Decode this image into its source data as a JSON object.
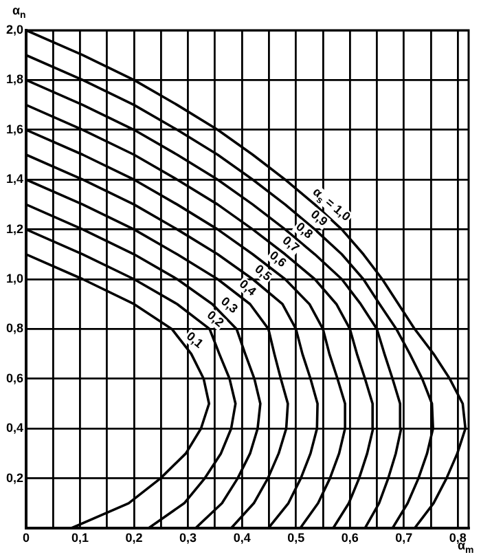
{
  "chart_data": {
    "type": "line",
    "xlabel": "α$_{m}$",
    "ylabel": "α$_{n}$",
    "xlim": [
      0,
      0.82
    ],
    "xticks": [
      {
        "value": 0,
        "label": "0"
      },
      {
        "value": 0.05,
        "label": null
      },
      {
        "value": 0.1,
        "label": "0,1"
      },
      {
        "value": 0.15,
        "label": null
      },
      {
        "value": 0.2,
        "label": "0,2"
      },
      {
        "value": 0.25,
        "label": null
      },
      {
        "value": 0.3,
        "label": "0,3"
      },
      {
        "value": 0.35,
        "label": null
      },
      {
        "value": 0.4,
        "label": "0,4"
      },
      {
        "value": 0.45,
        "label": null
      },
      {
        "value": 0.5,
        "label": "0,5"
      },
      {
        "value": 0.55,
        "label": null
      },
      {
        "value": 0.6,
        "label": "0,6"
      },
      {
        "value": 0.65,
        "label": null
      },
      {
        "value": 0.7,
        "label": "0,7"
      },
      {
        "value": 0.75,
        "label": null
      },
      {
        "value": 0.8,
        "label": "0,8"
      }
    ],
    "ylim": [
      0,
      2
    ],
    "yticks": [
      {
        "value": 0,
        "label": null
      },
      {
        "value": 0.2,
        "label": "0,2"
      },
      {
        "value": 0.4,
        "label": "0,4"
      },
      {
        "value": 0.6,
        "label": "0,6"
      },
      {
        "value": 0.8,
        "label": "0,8"
      },
      {
        "value": 1,
        "label": "1,0"
      },
      {
        "value": 1.2,
        "label": "1,2"
      },
      {
        "value": 1.4,
        "label": "1,4"
      },
      {
        "value": 1.6,
        "label": "1,6"
      },
      {
        "value": 1.8,
        "label": "1,8"
      },
      {
        "value": 2,
        "label": "2,0"
      }
    ],
    "grid": true,
    "legend": false,
    "marker": "none",
    "line_style": "solid",
    "series": [
      {
        "name": "0,1",
        "color": "#000000",
        "x": [
          0.084,
          0.19,
          0.249,
          0.296,
          0.324,
          0.339,
          0.329,
          0.306,
          0.27,
          0.2,
          0.105,
          0
        ],
        "values": [
          0,
          0.1,
          0.2,
          0.3,
          0.4,
          0.5,
          0.6,
          0.7,
          0.8,
          0.9,
          1.0,
          1.1
        ]
      },
      {
        "name": "0,2",
        "color": "#000000",
        "x": [
          0.227,
          0.293,
          0.331,
          0.361,
          0.38,
          0.388,
          0.377,
          0.358,
          0.34,
          0.28,
          0.2,
          0.105,
          0
        ],
        "values": [
          0,
          0.1,
          0.2,
          0.3,
          0.4,
          0.5,
          0.6,
          0.7,
          0.8,
          0.9,
          1.0,
          1.1,
          1.2
        ]
      },
      {
        "name": "0,3",
        "color": "#000000",
        "x": [
          0.314,
          0.363,
          0.392,
          0.415,
          0.429,
          0.434,
          0.423,
          0.406,
          0.39,
          0.345,
          0.28,
          0.2,
          0.105,
          0
        ],
        "values": [
          0,
          0.1,
          0.2,
          0.3,
          0.4,
          0.5,
          0.6,
          0.7,
          0.8,
          0.9,
          1.0,
          1.1,
          1.2,
          1.3
        ]
      },
      {
        "name": "0,4",
        "color": "#000000",
        "x": [
          0.38,
          0.422,
          0.448,
          0.468,
          0.482,
          0.485,
          0.472,
          0.46,
          0.449,
          0.415,
          0.355,
          0.28,
          0.2,
          0.105,
          0
        ],
        "values": [
          0,
          0.1,
          0.2,
          0.3,
          0.4,
          0.5,
          0.6,
          0.7,
          0.8,
          0.9,
          1.0,
          1.1,
          1.2,
          1.3,
          1.4
        ]
      },
      {
        "name": "0,5",
        "color": "#000000",
        "x": [
          0.449,
          0.486,
          0.509,
          0.527,
          0.539,
          0.54,
          0.527,
          0.512,
          0.5,
          0.475,
          0.42,
          0.355,
          0.28,
          0.2,
          0.105,
          0
        ],
        "values": [
          0,
          0.1,
          0.2,
          0.3,
          0.4,
          0.5,
          0.6,
          0.7,
          0.8,
          0.9,
          1.0,
          1.1,
          1.2,
          1.3,
          1.4,
          1.5
        ]
      },
      {
        "name": "0,6",
        "color": "#000000",
        "x": [
          0.508,
          0.541,
          0.563,
          0.58,
          0.591,
          0.591,
          0.577,
          0.562,
          0.55,
          0.525,
          0.48,
          0.42,
          0.355,
          0.28,
          0.2,
          0.105,
          0
        ],
        "values": [
          0,
          0.1,
          0.2,
          0.3,
          0.4,
          0.5,
          0.6,
          0.7,
          0.8,
          0.9,
          1.0,
          1.1,
          1.2,
          1.3,
          1.4,
          1.5,
          1.6
        ]
      },
      {
        "name": "0,7",
        "color": "#000000",
        "x": [
          0.569,
          0.598,
          0.617,
          0.632,
          0.643,
          0.642,
          0.628,
          0.613,
          0.6,
          0.575,
          0.535,
          0.48,
          0.42,
          0.355,
          0.28,
          0.2,
          0.105,
          0
        ],
        "values": [
          0,
          0.1,
          0.2,
          0.3,
          0.4,
          0.5,
          0.6,
          0.7,
          0.8,
          0.9,
          1.0,
          1.1,
          1.2,
          1.3,
          1.4,
          1.5,
          1.6,
          1.7
        ]
      },
      {
        "name": "0,8",
        "color": "#000000",
        "x": [
          0.628,
          0.654,
          0.671,
          0.685,
          0.695,
          0.693,
          0.679,
          0.664,
          0.65,
          0.62,
          0.585,
          0.535,
          0.48,
          0.42,
          0.355,
          0.28,
          0.2,
          0.105,
          0
        ],
        "values": [
          0,
          0.1,
          0.2,
          0.3,
          0.4,
          0.5,
          0.6,
          0.7,
          0.8,
          0.9,
          1.0,
          1.1,
          1.2,
          1.3,
          1.4,
          1.5,
          1.6,
          1.7,
          1.8
        ]
      },
      {
        "name": "0,9",
        "color": "#000000",
        "x": [
          0.679,
          0.707,
          0.727,
          0.743,
          0.754,
          0.752,
          0.734,
          0.711,
          0.686,
          0.655,
          0.625,
          0.585,
          0.535,
          0.48,
          0.42,
          0.355,
          0.28,
          0.2,
          0.105,
          0
        ],
        "values": [
          0,
          0.1,
          0.2,
          0.3,
          0.4,
          0.5,
          0.6,
          0.7,
          0.8,
          0.9,
          1.0,
          1.1,
          1.2,
          1.3,
          1.4,
          1.5,
          1.6,
          1.7,
          1.8,
          1.9
        ]
      },
      {
        "name": "α$_{s}$ = 1,0",
        "color": "#000000",
        "x": [
          0.72,
          0.755,
          0.779,
          0.799,
          0.814,
          0.809,
          0.785,
          0.755,
          0.72,
          0.69,
          0.66,
          0.625,
          0.585,
          0.535,
          0.48,
          0.42,
          0.355,
          0.28,
          0.2,
          0.105,
          0
        ],
        "values": [
          0,
          0.1,
          0.2,
          0.3,
          0.4,
          0.5,
          0.6,
          0.7,
          0.8,
          0.9,
          1.0,
          1.1,
          1.2,
          1.3,
          1.4,
          1.5,
          1.6,
          1.7,
          1.8,
          1.9,
          2.0
        ]
      }
    ]
  }
}
